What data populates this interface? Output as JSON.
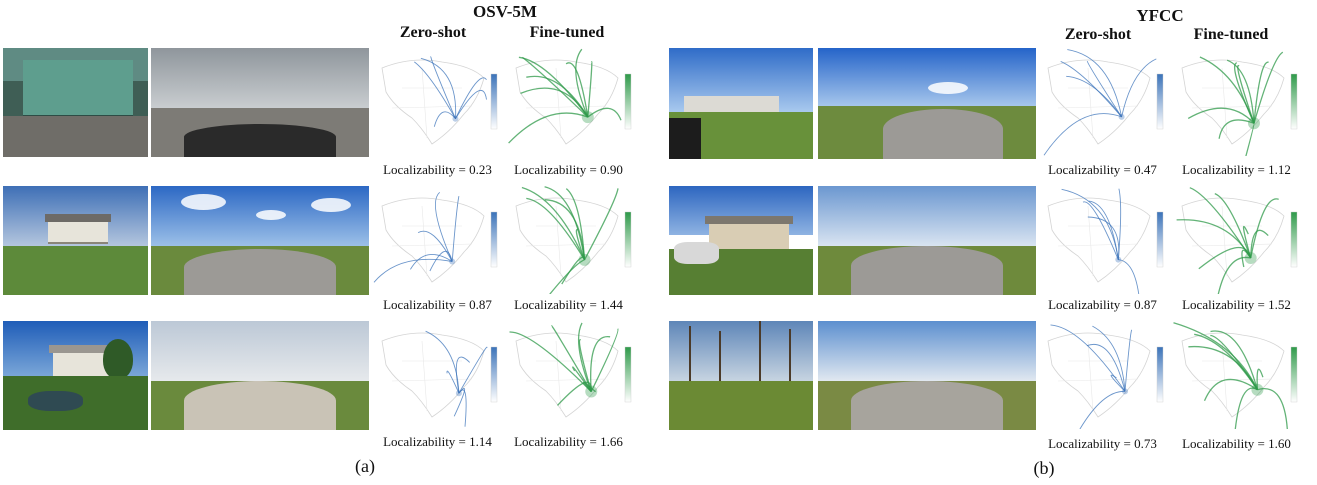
{
  "datasets": [
    {
      "title": "OSV-5M",
      "panel_label": "(a)",
      "col_zero": "Zero-shot",
      "col_fine": "Fine-tuned",
      "rows": [
        {
          "zero_label": "Localizability = 0.23",
          "fine_label": "Localizability = 0.90"
        },
        {
          "zero_label": "Localizability = 0.87",
          "fine_label": "Localizability = 1.44"
        },
        {
          "zero_label": "Localizability = 1.14",
          "fine_label": "Localizability = 1.66"
        }
      ]
    },
    {
      "title": "YFCC",
      "panel_label": "(b)",
      "col_zero": "Zero-shot",
      "col_fine": "Fine-tuned",
      "rows": [
        {
          "zero_label": "Localizability = 0.47",
          "fine_label": "Localizability = 1.12"
        },
        {
          "zero_label": "Localizability = 0.87",
          "fine_label": "Localizability = 1.52"
        },
        {
          "zero_label": "Localizability = 0.73",
          "fine_label": "Localizability = 1.60"
        }
      ]
    }
  ],
  "colors": {
    "zero_shot": "#3b73b9",
    "fine_tuned": "#2f9a4a",
    "map_outline": "#d4d4d4"
  }
}
